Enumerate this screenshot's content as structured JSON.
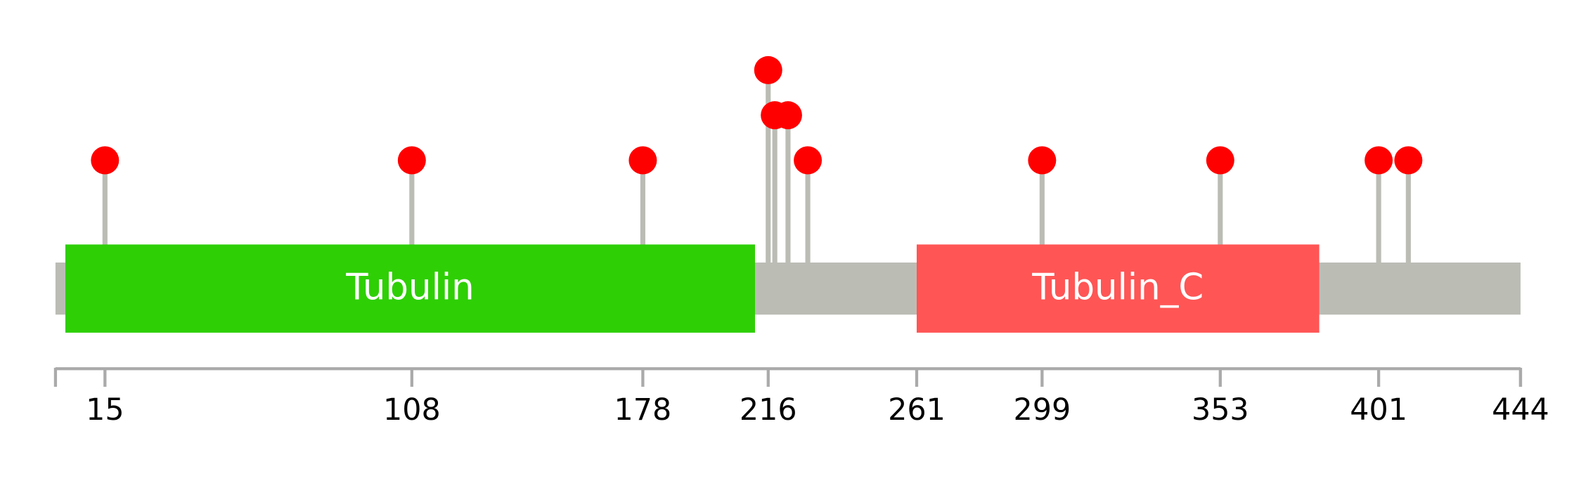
{
  "chart_data": {
    "type": "lollipop",
    "xlim": [
      0,
      444
    ],
    "xticks": [
      15,
      108,
      178,
      216,
      261,
      299,
      353,
      401,
      444
    ],
    "x": [
      15,
      108,
      178,
      216,
      218,
      222,
      228,
      299,
      353,
      401,
      410
    ],
    "values": [
      1,
      1,
      1,
      3,
      2,
      2,
      1,
      1,
      1,
      1,
      1
    ],
    "color": "#ff0000",
    "stick_color": "#bbbdb5",
    "backbone_color": "#bbbdb5",
    "domains": [
      {
        "name": "Tubulin",
        "start": 3,
        "end": 212,
        "color": "#2ecf05"
      },
      {
        "name": "Tubulin_C",
        "start": 261,
        "end": 383,
        "color": "#ff5555"
      }
    ]
  }
}
